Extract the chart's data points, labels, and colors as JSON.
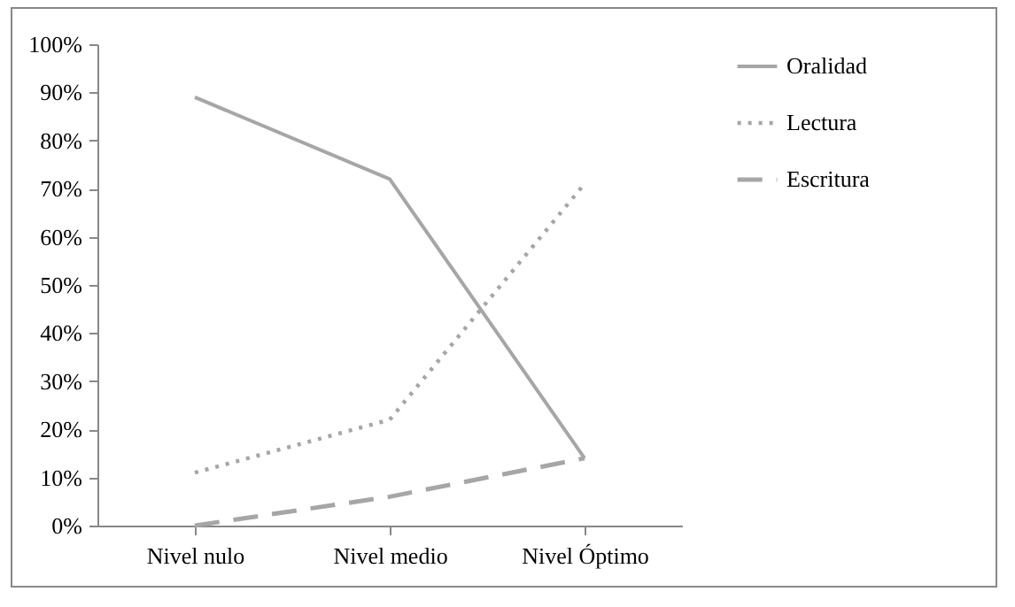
{
  "chart_data": {
    "type": "line",
    "categories": [
      "Nivel nulo",
      "Nivel medio",
      "Nivel Óptimo"
    ],
    "series": [
      {
        "name": "Oralidad",
        "color": "#a6a6a6",
        "line_style": "solid",
        "values": [
          89,
          72,
          14
        ]
      },
      {
        "name": "Lectura",
        "color": "#a6a6a6",
        "line_style": "dotted",
        "values": [
          11,
          22,
          71
        ]
      },
      {
        "name": "Escritura",
        "color": "#a6a6a6",
        "line_style": "dashed",
        "values": [
          0,
          6,
          14
        ]
      }
    ],
    "ylim": [
      0,
      100
    ],
    "yticks": [
      {
        "value": 0,
        "label": "0%"
      },
      {
        "value": 10,
        "label": "10%"
      },
      {
        "value": 20,
        "label": "20%"
      },
      {
        "value": 30,
        "label": "30%"
      },
      {
        "value": 40,
        "label": "40%"
      },
      {
        "value": 50,
        "label": "50%"
      },
      {
        "value": 60,
        "label": "60%"
      },
      {
        "value": 70,
        "label": "70%"
      },
      {
        "value": 80,
        "label": "80%"
      },
      {
        "value": 90,
        "label": "90%"
      },
      {
        "value": 100,
        "label": "100%"
      }
    ],
    "grid": false,
    "legend": "right",
    "marker": "none"
  }
}
